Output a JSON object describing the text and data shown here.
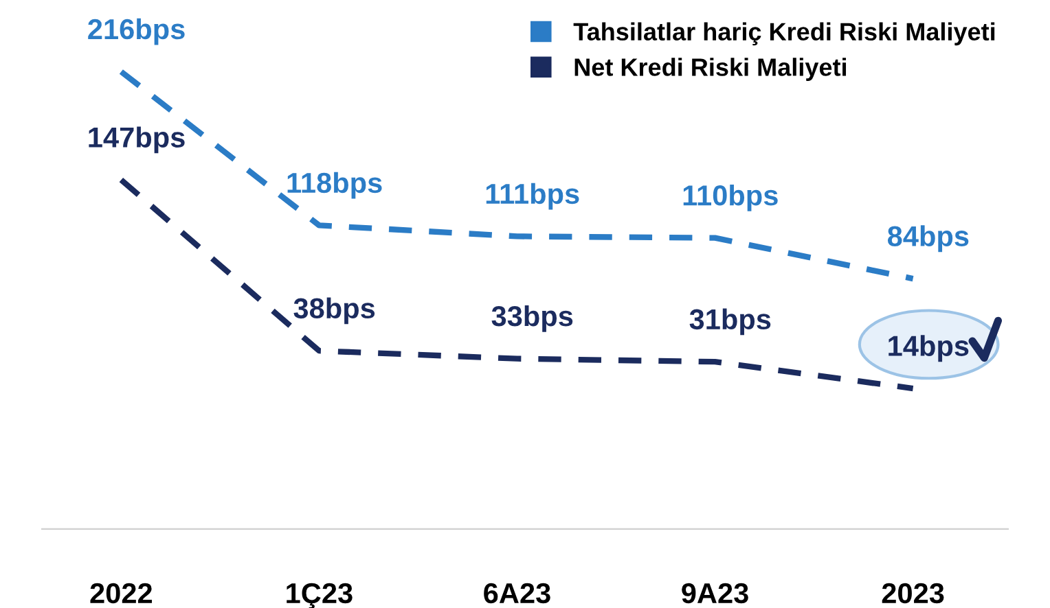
{
  "chart_data": {
    "type": "line",
    "categories": [
      "2022",
      "1Ç23",
      "6A23",
      "9A23",
      "2023"
    ],
    "series": [
      {
        "name": "Tahsilatlar hariç Kredi Riski Maliyeti",
        "color": "#2b7cc6",
        "values": [
          216,
          118,
          111,
          110,
          84
        ],
        "value_labels": [
          "216bps",
          "118bps",
          "111bps",
          "110bps",
          "84bps"
        ]
      },
      {
        "name": "Net Kredi Riski Maliyeti",
        "color": "#1b2b5e",
        "values": [
          147,
          38,
          33,
          31,
          14
        ],
        "value_labels": [
          "147bps",
          "38bps",
          "33bps",
          "31bps",
          "14bps"
        ]
      }
    ],
    "line_style": "dashed",
    "marker": "none",
    "legend": "top right",
    "grid": false
  }
}
